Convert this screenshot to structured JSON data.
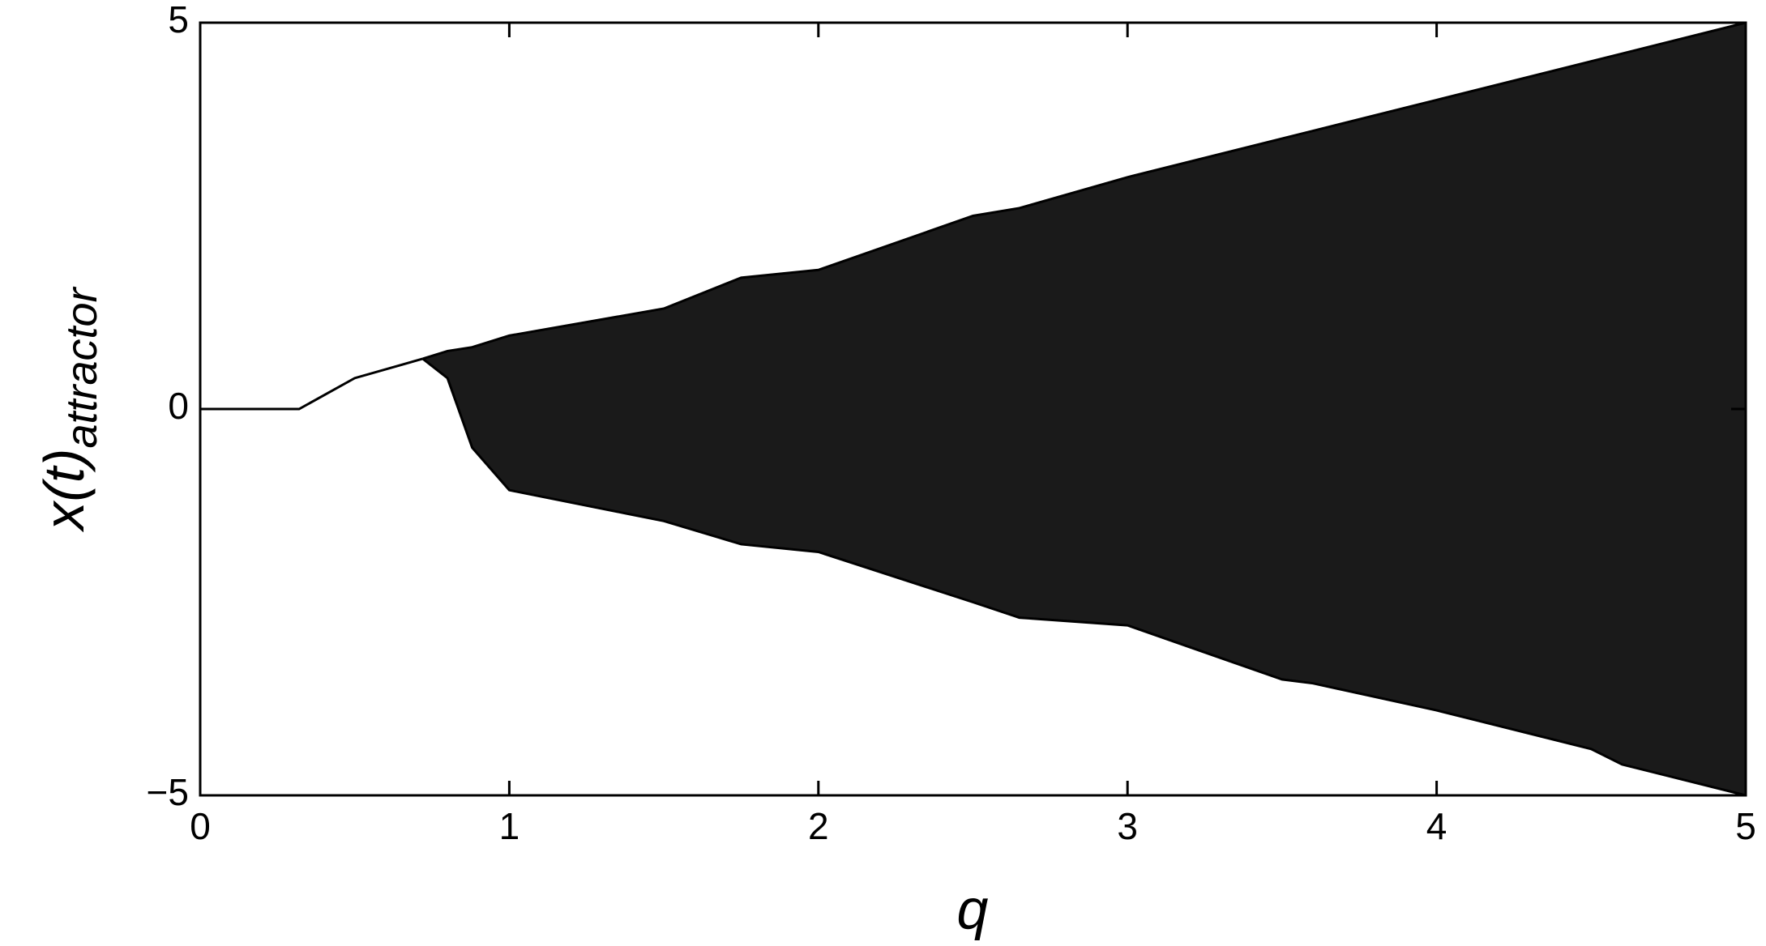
{
  "chart_data": {
    "type": "line",
    "xlabel": "q",
    "ylabel": "x(t)",
    "ylabel_subscript": "attractor",
    "x": [
      0,
      0.32,
      0.5,
      0.72,
      0.8,
      0.88,
      1,
      1.5,
      1.75,
      2,
      2.5,
      2.65,
      3,
      3.5,
      3.6,
      4,
      4.5,
      4.6,
      5
    ],
    "series": [
      {
        "color": "#000000",
        "values": [
          0,
          0,
          0.4,
          0.65,
          null,
          null,
          null,
          null,
          null,
          null,
          null,
          null,
          null,
          null,
          null,
          null,
          null,
          null,
          null
        ]
      },
      {
        "color": "#000000",
        "values": [
          null,
          null,
          null,
          0.65,
          0.75,
          0.8,
          0.95,
          1.3,
          1.7,
          1.8,
          2.5,
          2.6,
          3.0,
          3.5,
          3.6,
          4.0,
          4.5,
          4.6,
          5
        ]
      },
      {
        "color": "#000000",
        "values": [
          null,
          null,
          null,
          0.65,
          0.4,
          -0.5,
          -1.05,
          -1.45,
          -1.75,
          -1.85,
          -2.5,
          -2.7,
          -2.8,
          -3.5,
          -3.55,
          -3.9,
          -4.4,
          -4.6,
          -5
        ]
      }
    ],
    "xlim": [
      0,
      5
    ],
    "xticks": [
      0,
      1,
      2,
      3,
      4,
      5
    ],
    "ylim": [
      -5,
      5
    ],
    "yticks": [
      {
        "value": -5,
        "label": "−5"
      },
      0,
      5
    ]
  }
}
